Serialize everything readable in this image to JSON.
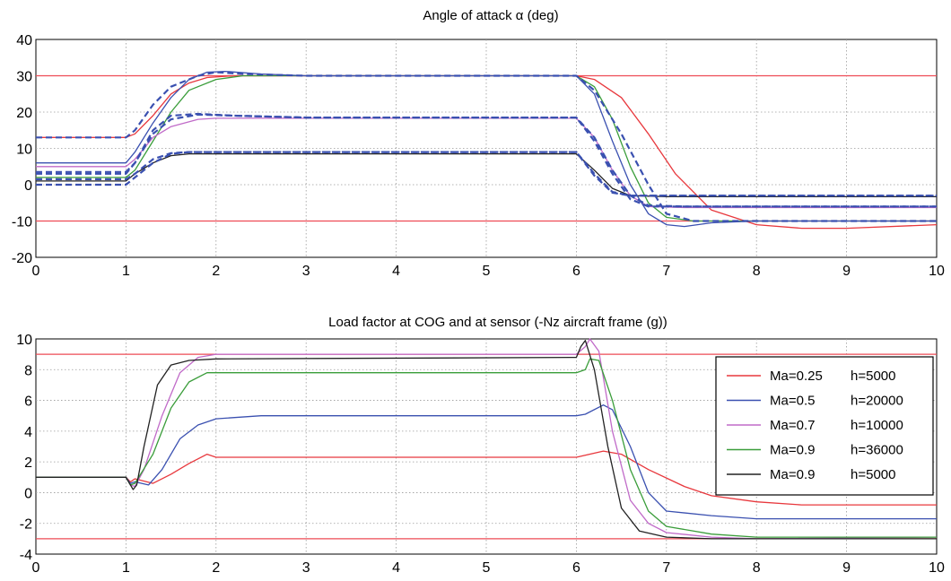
{
  "chart_data": [
    {
      "type": "line",
      "title": "Angle of attack α (deg)",
      "xlim": [
        0,
        10
      ],
      "ylim": [
        -20,
        40
      ],
      "xticks": [
        0,
        1,
        2,
        3,
        4,
        5,
        6,
        7,
        8,
        9,
        10
      ],
      "yticks": [
        -20,
        -10,
        0,
        10,
        20,
        30,
        40
      ],
      "grid": true,
      "limit_lines": [
        30,
        -10
      ],
      "series": [
        {
          "color": "#e8383d",
          "style": "solid",
          "points": [
            [
              0,
              13
            ],
            [
              1,
              13
            ],
            [
              1.1,
              14
            ],
            [
              1.3,
              19
            ],
            [
              1.5,
              25
            ],
            [
              1.7,
              28
            ],
            [
              1.9,
              29.5
            ],
            [
              2.2,
              30
            ],
            [
              6.0,
              30
            ],
            [
              6.2,
              29
            ],
            [
              6.5,
              24
            ],
            [
              6.8,
              14
            ],
            [
              7.1,
              3
            ],
            [
              7.5,
              -7
            ],
            [
              8.0,
              -11
            ],
            [
              8.5,
              -12
            ],
            [
              9.0,
              -12
            ],
            [
              10,
              -11
            ]
          ]
        },
        {
          "color": "#3a9d3a",
          "style": "solid",
          "points": [
            [
              0,
              2
            ],
            [
              1,
              2
            ],
            [
              1.1,
              4
            ],
            [
              1.3,
              12
            ],
            [
              1.5,
              20
            ],
            [
              1.7,
              26
            ],
            [
              2.0,
              29
            ],
            [
              2.3,
              30
            ],
            [
              6.0,
              30
            ],
            [
              6.2,
              27
            ],
            [
              6.4,
              18
            ],
            [
              6.6,
              5
            ],
            [
              6.8,
              -5
            ],
            [
              7.0,
              -9
            ],
            [
              7.3,
              -10
            ],
            [
              8,
              -10
            ],
            [
              10,
              -10
            ]
          ]
        },
        {
          "color": "#c06ac8",
          "style": "solid",
          "points": [
            [
              0,
              5
            ],
            [
              1,
              5
            ],
            [
              1.1,
              7
            ],
            [
              1.3,
              13
            ],
            [
              1.5,
              16
            ],
            [
              1.8,
              18
            ],
            [
              2.0,
              18.3
            ],
            [
              6.0,
              18.3
            ],
            [
              6.2,
              13
            ],
            [
              6.4,
              4
            ],
            [
              6.6,
              -3
            ],
            [
              6.8,
              -6
            ],
            [
              7.2,
              -6.3
            ],
            [
              10,
              -6.3
            ]
          ]
        },
        {
          "color": "#222222",
          "style": "solid",
          "points": [
            [
              0,
              1
            ],
            [
              1,
              1
            ],
            [
              1.1,
              3
            ],
            [
              1.3,
              6
            ],
            [
              1.5,
              8
            ],
            [
              1.7,
              8.5
            ],
            [
              6.0,
              8.5
            ],
            [
              6.2,
              4
            ],
            [
              6.4,
              -1
            ],
            [
              6.6,
              -3
            ],
            [
              7.0,
              -3.3
            ],
            [
              10,
              -3.3
            ]
          ]
        },
        {
          "color": "#3a50b0",
          "style": "solid",
          "points": [
            [
              0,
              6
            ],
            [
              1,
              6
            ],
            [
              1.1,
              9
            ],
            [
              1.3,
              17
            ],
            [
              1.5,
              24
            ],
            [
              1.7,
              29
            ],
            [
              1.9,
              31
            ],
            [
              2.1,
              31.2
            ],
            [
              2.5,
              30.5
            ],
            [
              3.0,
              30
            ],
            [
              6.0,
              30
            ],
            [
              6.2,
              25
            ],
            [
              6.4,
              12
            ],
            [
              6.6,
              0
            ],
            [
              6.8,
              -8
            ],
            [
              7.0,
              -11
            ],
            [
              7.2,
              -11.5
            ],
            [
              7.5,
              -10.5
            ],
            [
              8,
              -10
            ],
            [
              10,
              -10
            ]
          ]
        },
        {
          "color": "#3a50b0",
          "style": "dashed",
          "points": [
            [
              0,
              13
            ],
            [
              1,
              13
            ],
            [
              1.1,
              15
            ],
            [
              1.3,
              22
            ],
            [
              1.5,
              27
            ],
            [
              1.8,
              30
            ],
            [
              2.0,
              31
            ],
            [
              2.3,
              30.5
            ],
            [
              3.0,
              30
            ],
            [
              6.0,
              30
            ],
            [
              6.2,
              26
            ],
            [
              6.5,
              14
            ],
            [
              6.8,
              0
            ],
            [
              7.0,
              -8
            ],
            [
              7.3,
              -10
            ],
            [
              8,
              -10
            ],
            [
              10,
              -10
            ]
          ]
        },
        {
          "color": "#3a50b0",
          "style": "dashed",
          "points": [
            [
              0,
              3
            ],
            [
              1,
              3
            ],
            [
              1.1,
              6
            ],
            [
              1.3,
              14
            ],
            [
              1.5,
              18
            ],
            [
              1.8,
              19.3
            ],
            [
              2.2,
              19
            ],
            [
              3,
              18.5
            ],
            [
              6.0,
              18.5
            ],
            [
              6.2,
              13
            ],
            [
              6.4,
              4
            ],
            [
              6.6,
              -3
            ],
            [
              6.8,
              -5.7
            ],
            [
              7.2,
              -6
            ],
            [
              10,
              -6
            ]
          ]
        },
        {
          "color": "#3a50b0",
          "style": "dashed",
          "points": [
            [
              0,
              3.5
            ],
            [
              1,
              3.5
            ],
            [
              1.1,
              6
            ],
            [
              1.3,
              15
            ],
            [
              1.5,
              19
            ],
            [
              1.8,
              19.5
            ],
            [
              2.2,
              19
            ],
            [
              3,
              18.5
            ],
            [
              6.0,
              18.5
            ],
            [
              6.2,
              12
            ],
            [
              6.4,
              3
            ],
            [
              6.6,
              -4
            ],
            [
              6.8,
              -6
            ],
            [
              7.2,
              -6
            ],
            [
              10,
              -6
            ]
          ]
        },
        {
          "color": "#3a50b0",
          "style": "dashed",
          "points": [
            [
              0,
              0
            ],
            [
              1,
              0
            ],
            [
              1.1,
              2
            ],
            [
              1.3,
              6
            ],
            [
              1.5,
              8.5
            ],
            [
              1.7,
              9
            ],
            [
              6.0,
              9
            ],
            [
              6.2,
              3
            ],
            [
              6.4,
              -2
            ],
            [
              6.6,
              -3
            ],
            [
              7.0,
              -3
            ],
            [
              10,
              -3
            ]
          ]
        },
        {
          "color": "#3a50b0",
          "style": "dashed",
          "points": [
            [
              0,
              1.5
            ],
            [
              1,
              1.5
            ],
            [
              1.1,
              3
            ],
            [
              1.3,
              7
            ],
            [
              1.5,
              8.7
            ],
            [
              1.7,
              9
            ],
            [
              6.0,
              9
            ],
            [
              6.2,
              2.5
            ],
            [
              6.4,
              -2.2
            ],
            [
              6.6,
              -3
            ],
            [
              7.0,
              -3
            ],
            [
              10,
              -3
            ]
          ]
        }
      ]
    },
    {
      "type": "line",
      "title": "Load factor at COG and at sensor (-Nz aircraft frame (g))",
      "xlim": [
        0,
        10
      ],
      "ylim": [
        -4,
        10
      ],
      "xticks": [
        0,
        1,
        2,
        3,
        4,
        5,
        6,
        7,
        8,
        9,
        10
      ],
      "yticks": [
        -4,
        -2,
        0,
        2,
        4,
        6,
        8,
        10
      ],
      "grid": true,
      "limit_lines": [
        9,
        -3
      ],
      "legend": {
        "placement": "right",
        "entries": [
          {
            "color": "#e8383d",
            "ma": "Ma=0.25",
            "h": "h=5000"
          },
          {
            "color": "#3a50b0",
            "ma": "Ma=0.5",
            "h": "h=20000"
          },
          {
            "color": "#c06ac8",
            "ma": "Ma=0.7",
            "h": "h=10000"
          },
          {
            "color": "#3a9d3a",
            "ma": "Ma=0.9",
            "h": "h=36000"
          },
          {
            "color": "#222222",
            "ma": "Ma=0.9",
            "h": "h=5000"
          }
        ]
      },
      "series": [
        {
          "color": "#e8383d",
          "style": "solid",
          "points": [
            [
              0,
              1
            ],
            [
              1,
              1
            ],
            [
              1.05,
              0.7
            ],
            [
              1.1,
              0.9
            ],
            [
              1.3,
              0.6
            ],
            [
              1.5,
              1.2
            ],
            [
              1.7,
              1.9
            ],
            [
              1.9,
              2.5
            ],
            [
              2.0,
              2.3
            ],
            [
              6.0,
              2.3
            ],
            [
              6.3,
              2.7
            ],
            [
              6.5,
              2.5
            ],
            [
              6.8,
              1.5
            ],
            [
              7.2,
              0.4
            ],
            [
              7.5,
              -0.2
            ],
            [
              8,
              -0.6
            ],
            [
              8.5,
              -0.8
            ],
            [
              10,
              -0.8
            ]
          ]
        },
        {
          "color": "#3a50b0",
          "style": "solid",
          "points": [
            [
              0,
              1
            ],
            [
              1,
              1
            ],
            [
              1.05,
              0.6
            ],
            [
              1.1,
              0.7
            ],
            [
              1.25,
              0.5
            ],
            [
              1.4,
              1.5
            ],
            [
              1.6,
              3.5
            ],
            [
              1.8,
              4.4
            ],
            [
              2.0,
              4.8
            ],
            [
              2.5,
              5
            ],
            [
              6.0,
              5
            ],
            [
              6.1,
              5.1
            ],
            [
              6.3,
              5.7
            ],
            [
              6.4,
              5.4
            ],
            [
              6.6,
              3
            ],
            [
              6.8,
              0
            ],
            [
              7.0,
              -1.2
            ],
            [
              7.5,
              -1.5
            ],
            [
              8,
              -1.7
            ],
            [
              10,
              -1.7
            ]
          ]
        },
        {
          "color": "#c06ac8",
          "style": "solid",
          "points": [
            [
              0,
              1
            ],
            [
              1,
              1
            ],
            [
              1.05,
              0.5
            ],
            [
              1.1,
              0.4
            ],
            [
              1.2,
              1.5
            ],
            [
              1.4,
              5
            ],
            [
              1.6,
              7.8
            ],
            [
              1.8,
              8.8
            ],
            [
              2.0,
              9
            ],
            [
              6.0,
              9
            ],
            [
              6.1,
              9.5
            ],
            [
              6.15,
              10.0
            ],
            [
              6.25,
              9.2
            ],
            [
              6.4,
              4
            ],
            [
              6.6,
              -0.5
            ],
            [
              6.8,
              -2
            ],
            [
              7.0,
              -2.6
            ],
            [
              7.5,
              -2.9
            ],
            [
              8,
              -3.0
            ],
            [
              10,
              -2.9
            ]
          ]
        },
        {
          "color": "#3a9d3a",
          "style": "solid",
          "points": [
            [
              0,
              1
            ],
            [
              1,
              1
            ],
            [
              1.05,
              0.5
            ],
            [
              1.1,
              0.6
            ],
            [
              1.3,
              2.5
            ],
            [
              1.5,
              5.5
            ],
            [
              1.7,
              7.2
            ],
            [
              1.9,
              7.8
            ],
            [
              6.0,
              7.8
            ],
            [
              6.1,
              8
            ],
            [
              6.15,
              8.7
            ],
            [
              6.25,
              8.6
            ],
            [
              6.4,
              6
            ],
            [
              6.6,
              1.5
            ],
            [
              6.8,
              -1.2
            ],
            [
              7.0,
              -2.2
            ],
            [
              7.5,
              -2.7
            ],
            [
              8,
              -2.9
            ],
            [
              10,
              -2.9
            ]
          ]
        },
        {
          "color": "#222222",
          "style": "solid",
          "points": [
            [
              0,
              1
            ],
            [
              1,
              1
            ],
            [
              1.05,
              0.5
            ],
            [
              1.08,
              0.2
            ],
            [
              1.12,
              0.5
            ],
            [
              1.2,
              3
            ],
            [
              1.35,
              7
            ],
            [
              1.5,
              8.3
            ],
            [
              1.7,
              8.6
            ],
            [
              2.0,
              8.7
            ],
            [
              6.0,
              8.8
            ],
            [
              6.05,
              9.5
            ],
            [
              6.1,
              9.9
            ],
            [
              6.2,
              8
            ],
            [
              6.35,
              3
            ],
            [
              6.5,
              -1
            ],
            [
              6.7,
              -2.5
            ],
            [
              7.0,
              -2.9
            ],
            [
              7.5,
              -3.0
            ],
            [
              10,
              -3.0
            ]
          ]
        }
      ]
    }
  ]
}
